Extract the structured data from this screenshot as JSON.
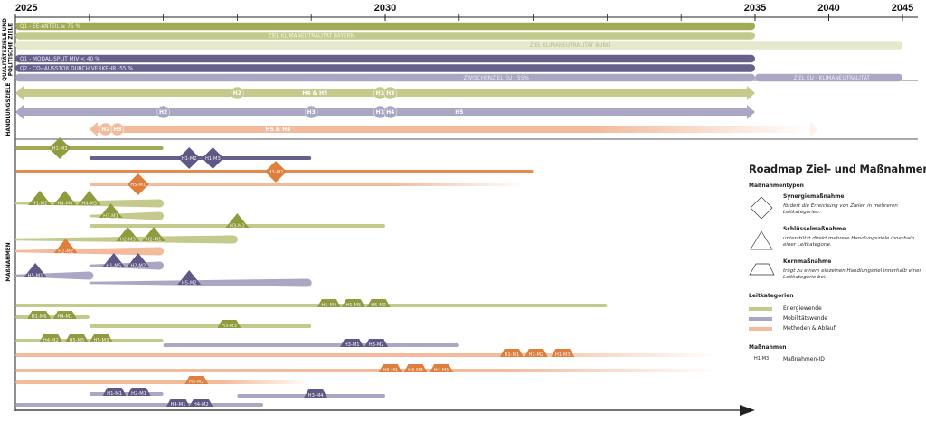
{
  "colors": {
    "energie": "#a3aa55",
    "energie_light": "#c3ca8c",
    "energie_pale": "#e6e9cc",
    "energie_mark": "#8f9b3c",
    "mobil": "#66618c",
    "mobil_light": "#aaa7c5",
    "mobil_mark": "#5d5886",
    "methode": "#e8894d",
    "methode_light": "#f3bb9c",
    "methode_mark": "#e07f3d",
    "axis": "#222222"
  },
  "axis": {
    "years": [
      {
        "label": "2025",
        "year": 2025
      },
      {
        "label": "2030",
        "year": 2030
      },
      {
        "label": "2035",
        "year": 2035
      },
      {
        "label": "2040",
        "year": 2040
      },
      {
        "label": "2045",
        "year": 2045
      }
    ],
    "minor_ticks": [
      2026,
      2027,
      2028,
      2029,
      2031,
      2032,
      2033,
      2034
    ]
  },
  "sections": {
    "ziele": [
      "QUALITÄTSZIELE UND",
      "POLITISCHE ZIELE"
    ],
    "handlungsziele": "HANDLUNGSZIELE",
    "massnahmen": "MAßNAHMEN"
  },
  "goals": [
    {
      "label": "Q1 - EE-ANTEIL ≥ 75 %",
      "from": 2025,
      "to": 2035,
      "color": "energie",
      "align": "left",
      "textColor": "#eef0d8"
    },
    {
      "label": "ZIEL KLIMANEUTRALITÄT BAYERN",
      "from": 2025,
      "to": 2035,
      "color": "energie_light",
      "align": "center",
      "textColor": "#f3f5e2",
      "labelAt": 2029.0
    },
    {
      "label": "ZIEL KLIMANEUTRALITÄT BUND",
      "from": 2025,
      "to": 2045,
      "color": "energie_pale",
      "align": "center",
      "textColor": "#b7bd82",
      "labelAt": 2032.5
    },
    {
      "label": "Q1 - MODAL-SPLIT MIV < 40 %",
      "from": 2025,
      "to": 2035,
      "color": "mobil",
      "align": "left",
      "textColor": "#e9e8f2"
    },
    {
      "label": "Q2 - CO₂-AUSSTOß DURCH VERKEHR -55 %",
      "from": 2025,
      "to": 2035,
      "color": "mobil",
      "align": "left",
      "textColor": "#e9e8f2"
    },
    {
      "label": "ZWISCHENZIEL EU - 55%",
      "from": 2025,
      "to": 2035,
      "color": "mobil_light",
      "align": "center",
      "textColor": "#ecebf4",
      "labelAt": 2031.5
    },
    {
      "label": "ZIEL EU - KLIMANEUTRALITÄT",
      "from": 2035,
      "to": 2045,
      "color": "mobil_light",
      "align": "center",
      "textColor": "#ecebf4",
      "labelAt": 2040.2,
      "sameRow": true
    }
  ],
  "handlungsziele": [
    {
      "category": "energie",
      "from": 2025,
      "to": 2035,
      "markers": [
        {
          "label": "H2",
          "year": 2028.0
        },
        {
          "label": "H4 & H5",
          "year": 2029.05,
          "text": true
        },
        {
          "label": "H1",
          "year": 2029.93
        },
        {
          "label": "H3",
          "year": 2030.07
        }
      ]
    },
    {
      "category": "mobil",
      "from": 2025,
      "to": 2035,
      "markers": [
        {
          "label": "H2",
          "year": 2027.0
        },
        {
          "label": "H3",
          "year": 2029.0
        },
        {
          "label": "H1",
          "year": 2029.93
        },
        {
          "label": "H4",
          "year": 2030.07
        },
        {
          "label": "H5",
          "year": 2031.0,
          "text": true
        }
      ]
    },
    {
      "category": "methode",
      "from": 2026,
      "to": 2039.3,
      "fade": true,
      "markers": [
        {
          "label": "H2",
          "year": 2026.22
        },
        {
          "label": "H3",
          "year": 2026.38
        },
        {
          "label": "H5 & H4",
          "year": 2028.55,
          "text": true
        }
      ]
    }
  ],
  "massnahmen": [
    {
      "category": "energie",
      "from": 2025,
      "to": 2027,
      "items": [
        {
          "type": "synergie",
          "label": "H1-M3",
          "year": 2025.6
        }
      ]
    },
    {
      "category": "mobil",
      "from": 2026,
      "to": 2029,
      "items": [
        {
          "type": "synergie",
          "label": "H1-M2",
          "year": 2027.35
        },
        {
          "type": "synergie",
          "label": "H1-M3",
          "year": 2027.67
        }
      ]
    },
    {
      "category": "methode",
      "from": 2025,
      "to": 2032,
      "items": [
        {
          "type": "synergie",
          "label": "H3-M2",
          "year": 2028.52
        }
      ]
    },
    {
      "category": "methode",
      "light": true,
      "from": 2026,
      "to": 2031.9,
      "fade": true,
      "items": [
        {
          "type": "synergie",
          "label": "H5-M1",
          "year": 2026.66
        }
      ]
    },
    {
      "category": "energie",
      "light": true,
      "taper": true,
      "from": 2025,
      "to": 2027,
      "items": [
        {
          "type": "schluessel",
          "label": "H1-M2",
          "year": 2025.33
        },
        {
          "type": "schluessel",
          "label": "H4-M4",
          "year": 2025.67
        },
        {
          "type": "schluessel",
          "label": "H4-M3",
          "year": 2026.0
        }
      ]
    },
    {
      "category": "energie",
      "light": true,
      "taper": true,
      "from": 2026,
      "to": 2027,
      "items": [
        {
          "type": "schluessel",
          "label": "H3-M1",
          "year": 2026.29
        }
      ]
    },
    {
      "category": "energie",
      "light": true,
      "from": 2026,
      "to": 2030,
      "items": [
        {
          "type": "schluessel",
          "label": "H3-M2",
          "year": 2028.0
        }
      ]
    },
    {
      "category": "energie",
      "light": true,
      "taper": true,
      "from": 2025,
      "to": 2028,
      "items": [
        {
          "type": "schluessel",
          "label": "H2-M3",
          "year": 2026.52
        },
        {
          "type": "schluessel",
          "label": "H2-M1",
          "year": 2026.87
        }
      ]
    },
    {
      "category": "methode",
      "light": true,
      "taper": true,
      "from": 2025,
      "to": 2027,
      "items": [
        {
          "type": "schluessel",
          "label": "H2-M2",
          "year": 2025.68
        }
      ]
    },
    {
      "category": "mobil",
      "light": true,
      "taper": true,
      "from": 2026,
      "to": 2027,
      "items": [
        {
          "type": "schluessel",
          "label": "H1-M5",
          "year": 2026.33
        },
        {
          "type": "schluessel",
          "label": "H2-M2",
          "year": 2026.66
        }
      ]
    },
    {
      "category": "mobil",
      "light": true,
      "taper": true,
      "from": 2025,
      "to": 2026.05,
      "items": [
        {
          "type": "schluessel",
          "label": "H5-M1",
          "year": 2025.27
        }
      ]
    },
    {
      "category": "mobil",
      "light": true,
      "taper": true,
      "from": 2026,
      "to": 2029,
      "items": [
        {
          "type": "schluessel",
          "label": "H5-M2",
          "year": 2027.35
        }
      ]
    },
    {
      "category": "energie",
      "light": true,
      "from": 2025,
      "to": 2033,
      "items": [
        {
          "type": "kern",
          "label": "H1-M4",
          "year": 2029.24
        },
        {
          "type": "kern",
          "label": "H1-M5",
          "year": 2029.57
        },
        {
          "type": "kern",
          "label": "H5-M2",
          "year": 2029.91
        }
      ]
    },
    {
      "category": "energie",
      "light": true,
      "from": 2025,
      "to": 2026,
      "items": [
        {
          "type": "kern",
          "label": "H1-M6",
          "year": 2025.32
        },
        {
          "type": "kern",
          "label": "H4-M1",
          "year": 2025.67
        }
      ]
    },
    {
      "category": "energie",
      "light": true,
      "from": 2026,
      "to": 2029,
      "items": [
        {
          "type": "kern",
          "label": "H3-M3",
          "year": 2027.89
        }
      ]
    },
    {
      "category": "energie",
      "light": true,
      "from": 2025,
      "to": 2027,
      "items": [
        {
          "type": "kern",
          "label": "H4-M2",
          "year": 2025.48
        },
        {
          "type": "kern",
          "label": "H5-M5",
          "year": 2025.83
        },
        {
          "type": "kern",
          "label": "H5-M3",
          "year": 2026.16
        }
      ]
    },
    {
      "category": "mobil",
      "light": true,
      "from": 2027,
      "to": 2031,
      "items": [
        {
          "type": "kern",
          "label": "H3-M1",
          "year": 2029.55
        },
        {
          "type": "kern",
          "label": "H3-M2",
          "year": 2029.88
        }
      ]
    },
    {
      "category": "methode",
      "light": true,
      "fade": true,
      "from": 2025,
      "to": 2034.5,
      "items": [
        {
          "type": "kern",
          "label": "H1-M1",
          "year": 2031.71
        },
        {
          "type": "kern",
          "label": "H1-M2",
          "year": 2032.04
        },
        {
          "type": "kern",
          "label": "H1-M3",
          "year": 2032.4
        }
      ]
    },
    {
      "category": "methode",
      "light": true,
      "fade": true,
      "from": 2025,
      "to": 2034.5,
      "items": [
        {
          "type": "kern",
          "label": "H3-M1",
          "year": 2030.07
        },
        {
          "type": "kern",
          "label": "H3-M3",
          "year": 2030.41
        },
        {
          "type": "kern",
          "label": "H4-M1",
          "year": 2030.76
        }
      ]
    },
    {
      "category": "methode",
      "light": true,
      "fade": true,
      "from": 2025,
      "to": 2029,
      "items": [
        {
          "type": "kern",
          "label": "H5-M2",
          "year": 2027.45
        }
      ]
    },
    {
      "category": "mobil",
      "light": true,
      "from": 2026,
      "to": 2027,
      "items": [
        {
          "type": "kern",
          "label": "H1-M1",
          "year": 2026.34
        },
        {
          "type": "kern",
          "label": "H2-M1",
          "year": 2026.67
        }
      ]
    },
    {
      "category": "mobil",
      "light": true,
      "from": 2028,
      "to": 2030,
      "sameRow": true,
      "items": [
        {
          "type": "kern",
          "label": "H3-M4",
          "year": 2029.06
        }
      ]
    },
    {
      "category": "mobil",
      "light": true,
      "from": 2025,
      "to": 2028.35,
      "items": [
        {
          "type": "kern",
          "label": "H4-M1",
          "year": 2027.2
        },
        {
          "type": "kern",
          "label": "H4-M2",
          "year": 2027.51
        }
      ]
    }
  ],
  "legend": {
    "title": "Roadmap Ziel- und Maßnahmen",
    "types_heading": "Maßnahmentypen",
    "types": [
      {
        "shape": "diamond-icon",
        "title": "Synergiemaßnahme",
        "desc": "fördert die Erreichung von Zielen in mehreren Leitkategorien."
      },
      {
        "shape": "triangle-icon",
        "title": "Schlüsselmaßnahme",
        "desc": "unterstützt direkt mehrere Handlungsziele innerhalb einer Leitkategorie."
      },
      {
        "shape": "trapezoid-icon",
        "title": "Kernmaßnahme",
        "desc": "trägt zu einem einzelnen Handlungsziel innerhalb einer Leitkategorie bei."
      }
    ],
    "categories_heading": "Leitkategorien",
    "categories": [
      {
        "label": "Energiewende",
        "color": "#c3ca8c"
      },
      {
        "label": "Mobilitätswende",
        "color": "#aaa7c5"
      },
      {
        "label": "Methoden & Ablauf",
        "color": "#f3bb9c"
      }
    ],
    "ids_heading": "Maßnahmen",
    "id_example": "H1-M3",
    "id_label": "Maßnahmen-ID"
  }
}
